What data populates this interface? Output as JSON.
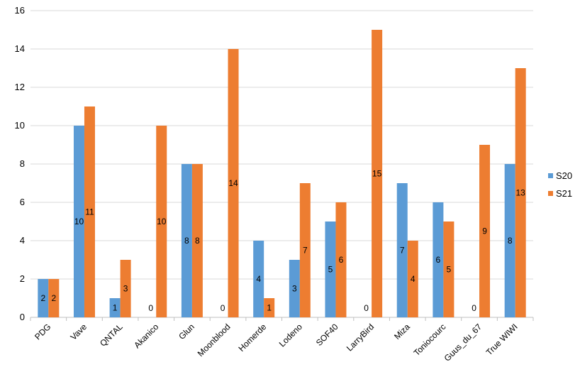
{
  "chart_data": {
    "type": "bar",
    "categories": [
      "PDG",
      "Vave",
      "QNTAL",
      "Akanico",
      "Glun",
      "Moonblood",
      "Homerde",
      "Lodeno",
      "SOF40",
      "LarryBird",
      "Miza",
      "Toniocourc",
      "Guus_du_67",
      "True WIWI"
    ],
    "series": [
      {
        "name": "S20",
        "values": [
          2,
          10,
          1,
          0,
          8,
          0,
          4,
          3,
          5,
          0,
          7,
          6,
          0,
          8
        ],
        "color": "#5B9BD5"
      },
      {
        "name": "S21",
        "values": [
          2,
          11,
          3,
          10,
          8,
          14,
          1,
          7,
          6,
          15,
          4,
          5,
          9,
          13
        ],
        "color": "#ED7D31"
      }
    ],
    "ylim": [
      0,
      16
    ],
    "yticks": [
      0,
      2,
      4,
      6,
      8,
      10,
      12,
      14,
      16
    ],
    "grid": true,
    "legend_position": "right",
    "data_labels": true
  }
}
